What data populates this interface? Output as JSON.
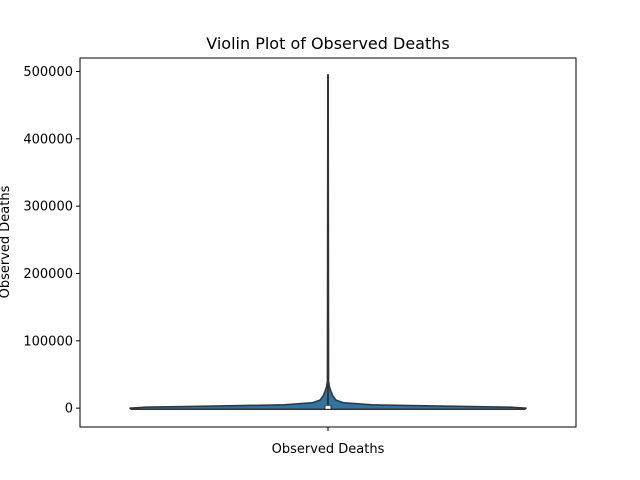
{
  "chart_data": {
    "type": "violin",
    "title": "Violin Plot of Observed Deaths",
    "xlabel": "",
    "ylabel": "Observed Deaths",
    "categories": [
      "Observed Deaths"
    ],
    "ylim": [
      -28000,
      520000
    ],
    "yticks": [
      0,
      100000,
      200000,
      300000,
      400000,
      500000
    ],
    "ytick_labels": [
      "0",
      "100000",
      "200000",
      "300000",
      "400000",
      "500000"
    ],
    "grid": false,
    "legend": "none",
    "fill_color": "#3274a1",
    "edge_color": "#333333",
    "violin": {
      "min": 0,
      "q1": 300,
      "median": 1200,
      "q3": 4500,
      "whisker_top": 495000,
      "density_profile": [
        {
          "y": -1500,
          "w": 0.995
        },
        {
          "y": 0,
          "w": 1.0
        },
        {
          "y": 1500,
          "w": 0.92
        },
        {
          "y": 3000,
          "w": 0.6
        },
        {
          "y": 5000,
          "w": 0.22
        },
        {
          "y": 8000,
          "w": 0.08
        },
        {
          "y": 12000,
          "w": 0.04
        },
        {
          "y": 18000,
          "w": 0.025
        },
        {
          "y": 25000,
          "w": 0.015
        },
        {
          "y": 32000,
          "w": 0.007
        },
        {
          "y": 40000,
          "w": 0.003
        },
        {
          "y": 495000,
          "w": 0.001
        }
      ]
    }
  }
}
